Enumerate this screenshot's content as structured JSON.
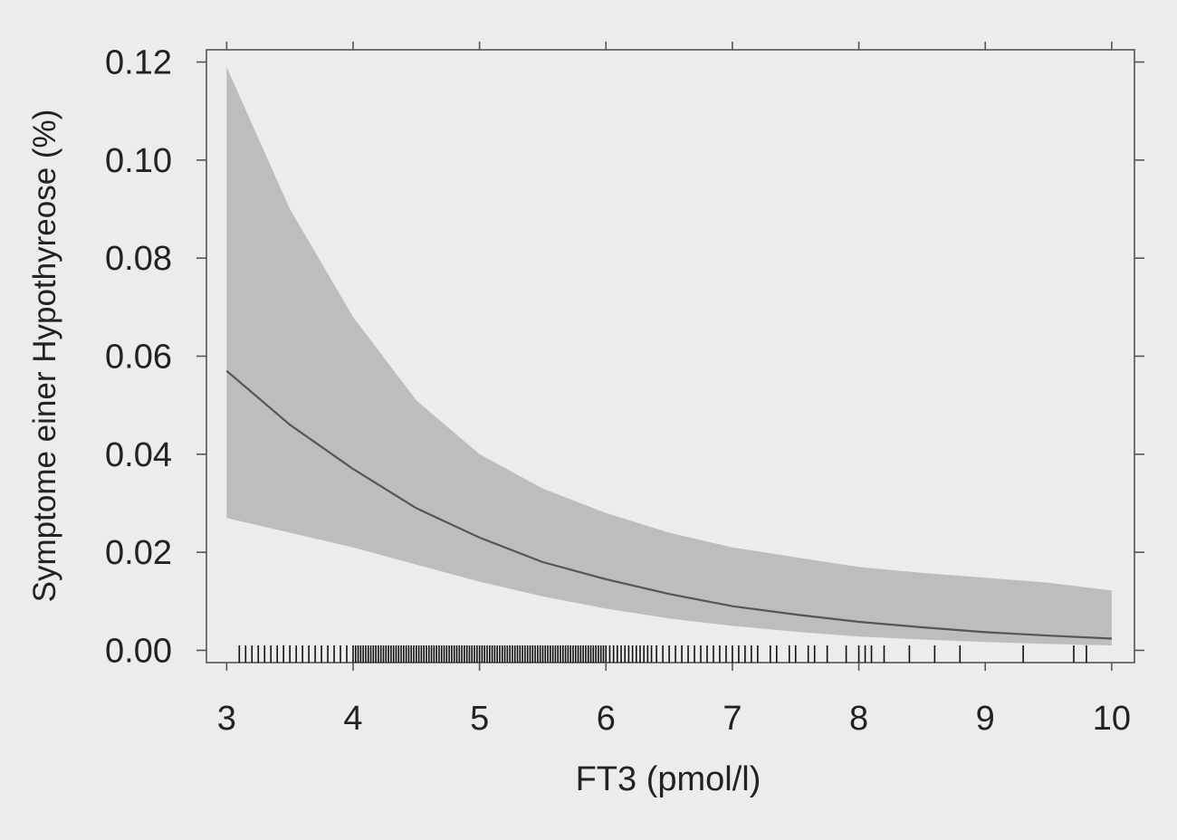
{
  "chart_data": {
    "type": "line",
    "xlabel": "FT3 (pmol/l)",
    "ylabel": "Symptome einer Hypothyreose (%)",
    "xlim": [
      2.84,
      10.18
    ],
    "ylim": [
      -0.0025,
      0.1225
    ],
    "x_ticks": [
      3,
      4,
      5,
      6,
      7,
      8,
      9,
      10
    ],
    "x_tick_labels": [
      "3",
      "4",
      "5",
      "6",
      "7",
      "8",
      "9",
      "10"
    ],
    "y_ticks": [
      0.0,
      0.02,
      0.04,
      0.06,
      0.08,
      0.1,
      0.12
    ],
    "y_tick_labels": [
      "0.00",
      "0.02",
      "0.04",
      "0.06",
      "0.08",
      "0.10",
      "0.12"
    ],
    "grid": false,
    "colors": {
      "band": "#bdbdbd",
      "line": "#555555",
      "rug": "#111111",
      "frame": "#555555",
      "background": "#ececec"
    },
    "series": [
      {
        "x": [
          3.0,
          3.5,
          4.0,
          4.5,
          5.0,
          5.5,
          6.0,
          6.5,
          7.0,
          7.5,
          8.0,
          8.5,
          9.0,
          9.5,
          10.0
        ],
        "values": [
          0.057,
          0.046,
          0.037,
          0.029,
          0.023,
          0.018,
          0.0145,
          0.0115,
          0.009,
          0.0073,
          0.0058,
          0.0047,
          0.0037,
          0.003,
          0.0024
        ]
      }
    ],
    "confidence_band": {
      "x": [
        3.0,
        3.5,
        4.0,
        4.5,
        5.0,
        5.5,
        6.0,
        6.5,
        7.0,
        7.5,
        8.0,
        8.5,
        9.0,
        9.5,
        10.0
      ],
      "upper": [
        0.119,
        0.09,
        0.068,
        0.051,
        0.04,
        0.033,
        0.028,
        0.024,
        0.021,
        0.019,
        0.017,
        0.0158,
        0.0148,
        0.0138,
        0.0122
      ],
      "lower": [
        0.027,
        0.024,
        0.021,
        0.0175,
        0.014,
        0.011,
        0.0085,
        0.0065,
        0.005,
        0.0038,
        0.0028,
        0.0022,
        0.0017,
        0.0013,
        0.001
      ]
    },
    "rug": [
      3.1,
      3.15,
      3.2,
      3.25,
      3.3,
      3.35,
      3.4,
      3.45,
      3.5,
      3.55,
      3.6,
      3.65,
      3.7,
      3.75,
      3.8,
      3.85,
      3.9,
      3.95,
      4.0,
      4.02,
      4.04,
      4.06,
      4.08,
      4.1,
      4.12,
      4.14,
      4.16,
      4.18,
      4.2,
      4.22,
      4.24,
      4.26,
      4.28,
      4.3,
      4.32,
      4.34,
      4.36,
      4.38,
      4.4,
      4.42,
      4.44,
      4.46,
      4.48,
      4.5,
      4.52,
      4.54,
      4.56,
      4.58,
      4.6,
      4.62,
      4.64,
      4.66,
      4.68,
      4.7,
      4.72,
      4.74,
      4.76,
      4.78,
      4.8,
      4.82,
      4.84,
      4.86,
      4.88,
      4.9,
      4.92,
      4.94,
      4.96,
      4.98,
      5.0,
      5.02,
      5.04,
      5.06,
      5.08,
      5.1,
      5.12,
      5.14,
      5.16,
      5.18,
      5.2,
      5.22,
      5.24,
      5.26,
      5.28,
      5.3,
      5.32,
      5.34,
      5.36,
      5.38,
      5.4,
      5.42,
      5.44,
      5.46,
      5.48,
      5.5,
      5.52,
      5.54,
      5.56,
      5.58,
      5.6,
      5.62,
      5.64,
      5.66,
      5.68,
      5.7,
      5.72,
      5.74,
      5.76,
      5.78,
      5.8,
      5.82,
      5.84,
      5.86,
      5.88,
      5.9,
      5.92,
      5.94,
      5.96,
      5.98,
      6.0,
      6.03,
      6.06,
      6.09,
      6.12,
      6.15,
      6.18,
      6.21,
      6.24,
      6.27,
      6.3,
      6.33,
      6.36,
      6.4,
      6.45,
      6.5,
      6.55,
      6.6,
      6.65,
      6.7,
      6.75,
      6.8,
      6.85,
      6.9,
      6.95,
      7.0,
      7.05,
      7.1,
      7.15,
      7.2,
      7.3,
      7.35,
      7.45,
      7.5,
      7.6,
      7.65,
      7.75,
      7.9,
      8.0,
      8.05,
      8.1,
      8.2,
      8.4,
      8.6,
      8.8,
      9.3,
      9.7,
      9.8
    ]
  }
}
